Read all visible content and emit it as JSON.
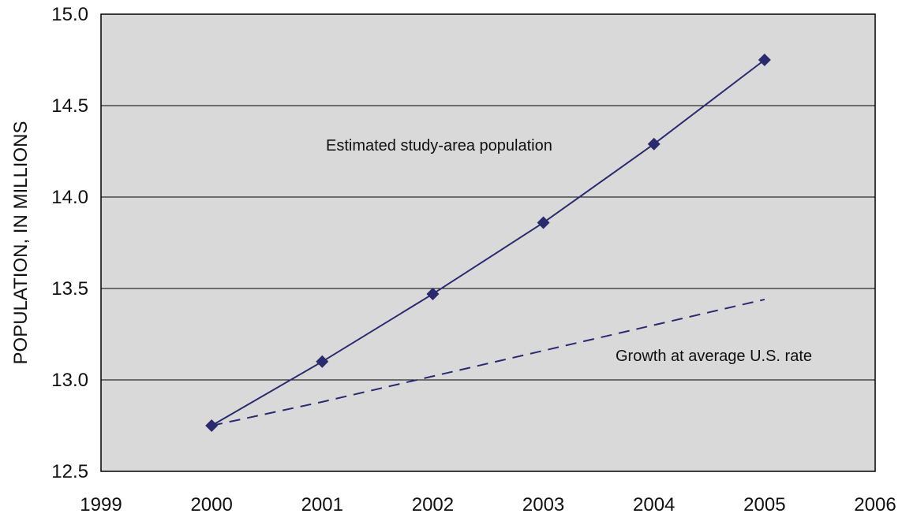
{
  "chart_data": {
    "type": "line",
    "xlabel": "",
    "ylabel": "POPULATION, IN MILLIONS",
    "xlim": [
      1999,
      2006
    ],
    "ylim": [
      12.5,
      15.0
    ],
    "x_ticks": [
      "1999",
      "2000",
      "2001",
      "2002",
      "2003",
      "2004",
      "2005",
      "2006"
    ],
    "y_ticks": [
      "12.5",
      "13.0",
      "13.5",
      "14.0",
      "14.5",
      "15.0"
    ],
    "grid": "horizontal",
    "plot_background": "#d9d9d9",
    "series": [
      {
        "label": "Estimated study-area population",
        "style": "solid",
        "marker": "diamond",
        "color": "#2a2a6e",
        "x": [
          2000,
          2001,
          2002,
          2003,
          2004,
          2005
        ],
        "y": [
          12.75,
          13.1,
          13.47,
          13.86,
          14.29,
          14.75
        ]
      },
      {
        "label": "Growth at average U.S. rate",
        "style": "dashed",
        "marker": "none",
        "color": "#2a2a6e",
        "x": [
          2000,
          2001,
          2002,
          2003,
          2004,
          2005
        ],
        "y": [
          12.75,
          12.88,
          13.02,
          13.16,
          13.3,
          13.44
        ]
      }
    ]
  }
}
